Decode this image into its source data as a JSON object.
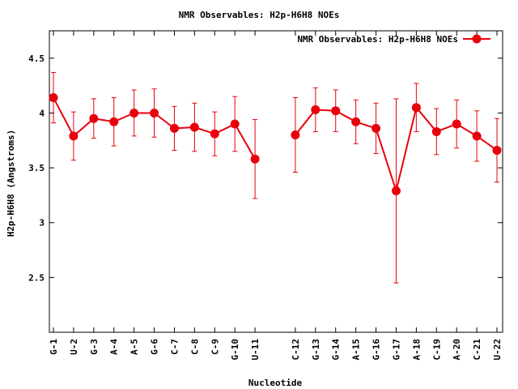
{
  "chart_data": {
    "type": "line",
    "title": "NMR Observables: H2p-H6H8 NOEs",
    "xlabel": "Nucleotide",
    "ylabel": "H2p-H6H8 (Angstroms)",
    "ylim": [
      2.0,
      4.75
    ],
    "yticks": [
      2.5,
      3,
      3.5,
      4,
      4.5
    ],
    "ytick_labels": [
      "2.5",
      "3",
      "3.5",
      "4",
      "4.5"
    ],
    "xlim": [
      0.5,
      22
    ],
    "legend_position": "top-right",
    "grid": false,
    "categories": [
      "G-1",
      "U-2",
      "G-3",
      "A-4",
      "A-5",
      "G-6",
      "C-7",
      "C-8",
      "C-9",
      "G-10",
      "U-11",
      "C-12",
      "G-13",
      "G-14",
      "A-15",
      "G-16",
      "G-17",
      "A-18",
      "C-19",
      "A-20",
      "C-21",
      "U-22"
    ],
    "series": [
      {
        "name": "NMR Observables: H2p-H6H8 NOEs",
        "color": "#e8000b",
        "x": [
          1,
          2,
          3,
          4,
          5,
          6,
          7,
          8,
          9,
          10,
          11,
          13,
          14,
          15,
          16,
          17,
          18,
          19,
          20,
          21,
          22,
          23
        ],
        "values": [
          4.14,
          3.79,
          3.95,
          3.92,
          4.0,
          4.0,
          3.86,
          3.87,
          3.81,
          3.9,
          3.58,
          3.8,
          4.03,
          4.02,
          3.92,
          3.86,
          3.29,
          4.05,
          3.83,
          3.9,
          3.79,
          3.66
        ],
        "err": [
          0.23,
          0.22,
          0.18,
          0.22,
          0.21,
          0.22,
          0.2,
          0.22,
          0.2,
          0.25,
          0.36,
          0.34,
          0.2,
          0.19,
          0.2,
          0.23,
          0.84,
          0.22,
          0.21,
          0.22,
          0.23,
          0.29
        ]
      }
    ]
  }
}
